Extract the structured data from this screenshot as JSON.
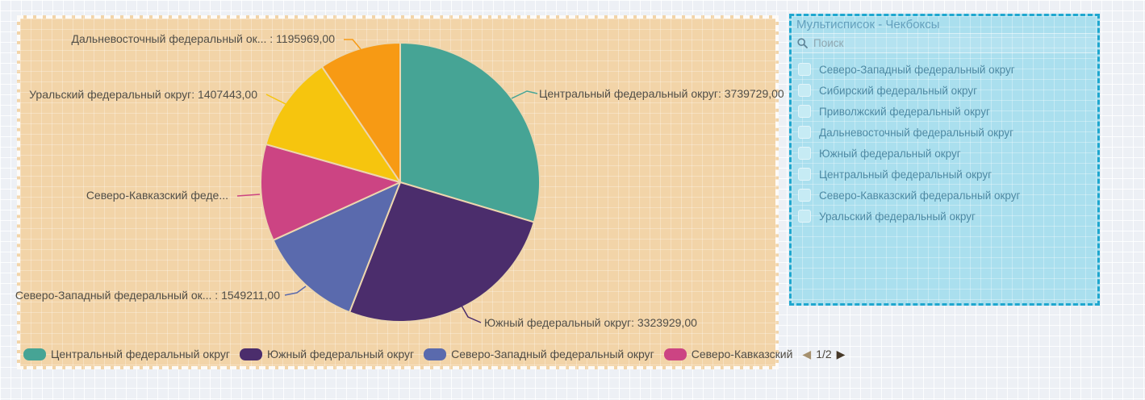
{
  "chart_data": {
    "type": "pie",
    "title": "",
    "start_angle_deg": 0,
    "direction": "clockwise",
    "grid": false,
    "slices": [
      {
        "label": "Центральный федеральный округ",
        "value": 3739729,
        "color": "#46a495",
        "callout": "Центральный федеральный округ: 3739729,00"
      },
      {
        "label": "Южный федеральный округ",
        "value": 3323929,
        "color": "#4b2d6c",
        "callout": "Южный федеральный округ: 3323929,00"
      },
      {
        "label": "Северо-Западный федеральный округ",
        "value": 1549211,
        "color": "#5a6aad",
        "callout": "Северо-Западный федеральный ок... : 1549211,00"
      },
      {
        "label": "Северо-Кавказский федеральный округ",
        "value": 1415000,
        "estimated": true,
        "color": "#cc4483",
        "callout": "Северо-Кавказский феде..."
      },
      {
        "label": "Уральский федеральный округ",
        "value": 1407443,
        "color": "#f6c50e",
        "callout": "Уральский федеральный округ: 1407443,00"
      },
      {
        "label": "Дальневосточный федеральный округ",
        "value": 1195969,
        "color": "#f79a14",
        "callout": "Дальневосточный федеральный ок... : 1195969,00"
      }
    ],
    "legend": {
      "position": "bottom",
      "items": [
        {
          "label": "Центральный федеральный округ",
          "color": "#46a495"
        },
        {
          "label": "Южный федеральный округ",
          "color": "#4b2d6c"
        },
        {
          "label": "Северо-Западный федеральный округ",
          "color": "#5a6aad"
        },
        {
          "label": "Северо-Кавказский",
          "color": "#cc4483"
        }
      ],
      "pagination": {
        "prev": "◀",
        "page": "1/2",
        "next": "▶"
      }
    }
  },
  "checkbox_panel": {
    "title": "Мультисписок - Чекбоксы",
    "search_placeholder": "Поиск",
    "items": [
      {
        "label": "Северо-Западный федеральный округ",
        "checked": false
      },
      {
        "label": "Сибирский федеральный округ",
        "checked": false
      },
      {
        "label": "Приволжский федеральный округ",
        "checked": false
      },
      {
        "label": "Дальневосточный федеральный округ",
        "checked": false
      },
      {
        "label": "Южный федеральный округ",
        "checked": false
      },
      {
        "label": "Центральный федеральный округ",
        "checked": false
      },
      {
        "label": "Северо-Кавказский федеральный округ",
        "checked": false
      },
      {
        "label": "Уральский федеральный округ",
        "checked": false
      }
    ]
  }
}
